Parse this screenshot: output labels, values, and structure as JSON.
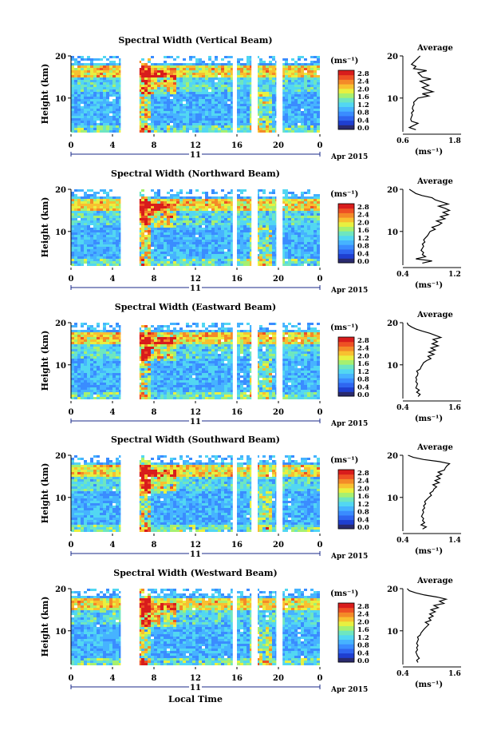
{
  "colors": {
    "colormap": [
      "#2a2a6e",
      "#1f3fd0",
      "#2f66f0",
      "#3a8cff",
      "#46b3ff",
      "#52d7f2",
      "#6ee6c0",
      "#a6f070",
      "#e8f040",
      "#f8c030",
      "#f48a28",
      "#ee5024",
      "#d81c1c"
    ],
    "background": "#ffffff",
    "axis": "#000000",
    "profile_line": "#000000"
  },
  "chart_data": [
    {
      "type": "heatmap",
      "title": "Spectral Width (Vertical Beam)",
      "ylabel": "Height (km)",
      "yticks": [
        "20",
        "10"
      ],
      "xticks": [
        "0",
        "4",
        "8",
        "12",
        "16",
        "20",
        "0"
      ],
      "date_label": "11",
      "date_suffix": "Apr 2015",
      "colorbar_unit": "(ms⁻¹)",
      "colorbar_ticks": [
        "2.8",
        "2.4",
        "2.0",
        "1.6",
        "1.2",
        "0.8",
        "0.4",
        "0.0"
      ],
      "xlim_hours": [
        0,
        24
      ],
      "ylim_km": [
        2,
        20
      ],
      "gaps_hours": [
        [
          4.8,
          6.6
        ],
        [
          15.6,
          16.0
        ],
        [
          17.4,
          18.0
        ],
        [
          19.8,
          20.4
        ]
      ],
      "profile": {
        "title": "Average",
        "xlabel": "(ms⁻¹)",
        "xticks": [
          "0.6",
          "1.8"
        ],
        "xlim": [
          0.6,
          1.8
        ],
        "yticks": [
          "20",
          "10"
        ],
        "height_km": [
          2.5,
          3,
          3.5,
          4,
          4.5,
          5,
          5.5,
          6,
          6.5,
          7,
          7.5,
          8,
          8.5,
          9,
          9.5,
          10,
          10.5,
          11,
          11.5,
          12,
          12.5,
          13,
          13.5,
          14,
          14.5,
          15,
          15.5,
          16,
          16.5,
          17,
          17.5,
          18,
          18.5,
          19,
          19.5,
          20
        ],
        "width": [
          0.9,
          0.75,
          0.85,
          0.95,
          0.8,
          0.78,
          0.8,
          0.82,
          0.8,
          0.85,
          0.82,
          0.83,
          0.86,
          0.85,
          0.9,
          0.95,
          1.2,
          1.05,
          1.3,
          1.15,
          1.05,
          1.2,
          1.1,
          1.0,
          1.25,
          1.05,
          1.0,
          0.95,
          1.15,
          0.85,
          0.9,
          0.8,
          0.85,
          0.9,
          0.95,
          1.0
        ]
      }
    },
    {
      "type": "heatmap",
      "title": "Spectral Width (Northward Beam)",
      "ylabel": "Height (km)",
      "yticks": [
        "20",
        "10"
      ],
      "xticks": [
        "0",
        "4",
        "8",
        "12",
        "16",
        "20",
        "0"
      ],
      "date_label": "11",
      "date_suffix": "Apr 2015",
      "colorbar_unit": "(ms⁻¹)",
      "colorbar_ticks": [
        "2.8",
        "2.4",
        "2.0",
        "1.6",
        "1.2",
        "0.8",
        "0.4",
        "0.0"
      ],
      "xlim_hours": [
        0,
        24
      ],
      "ylim_km": [
        2,
        20
      ],
      "gaps_hours": [
        [
          4.8,
          6.6
        ],
        [
          15.6,
          16.0
        ],
        [
          17.4,
          18.0
        ],
        [
          19.8,
          20.4
        ]
      ],
      "profile": {
        "title": "Average",
        "xlabel": "(ms⁻¹)",
        "xticks": [
          "0.4",
          "1.2"
        ],
        "xlim": [
          0.4,
          1.2
        ],
        "yticks": [
          "20",
          "10"
        ],
        "height_km": [
          2.5,
          3,
          3.5,
          4,
          4.5,
          5,
          5.5,
          6,
          6.5,
          7,
          7.5,
          8,
          8.5,
          9,
          9.5,
          10,
          10.5,
          11,
          11.5,
          12,
          12.5,
          13,
          13.5,
          14,
          14.5,
          15,
          15.5,
          16,
          16.5,
          17,
          17.5,
          18,
          18.5,
          19,
          19.5,
          20
        ],
        "width": [
          0.7,
          0.85,
          0.6,
          0.75,
          0.7,
          0.72,
          0.68,
          0.7,
          0.72,
          0.7,
          0.74,
          0.72,
          0.75,
          0.78,
          0.8,
          0.82,
          0.9,
          0.85,
          0.95,
          1.0,
          0.92,
          1.05,
          0.98,
          1.1,
          1.02,
          1.12,
          1.05,
          0.95,
          1.1,
          1.0,
          0.9,
          0.85,
          0.7,
          0.6,
          0.55,
          0.5
        ]
      }
    },
    {
      "type": "heatmap",
      "title": "Spectral Width (Eastward Beam)",
      "ylabel": "Height (km)",
      "yticks": [
        "20",
        "10"
      ],
      "xticks": [
        "0",
        "4",
        "8",
        "12",
        "16",
        "20",
        "0"
      ],
      "date_label": "11",
      "date_suffix": "Apr 2015",
      "colorbar_unit": "(ms⁻¹)",
      "colorbar_ticks": [
        "2.8",
        "2.4",
        "2.0",
        "1.6",
        "1.2",
        "0.8",
        "0.4",
        "0.0"
      ],
      "xlim_hours": [
        0,
        24
      ],
      "ylim_km": [
        2,
        20
      ],
      "gaps_hours": [
        [
          4.8,
          6.6
        ],
        [
          15.6,
          16.0
        ],
        [
          17.4,
          18.0
        ],
        [
          19.8,
          20.4
        ]
      ],
      "profile": {
        "title": "Average",
        "xlabel": "(ms⁻¹)",
        "xticks": [
          "0.4",
          "1.6"
        ],
        "xlim": [
          0.4,
          1.6
        ],
        "yticks": [
          "20",
          "10"
        ],
        "height_km": [
          2.5,
          3,
          3.5,
          4,
          4.5,
          5,
          5.5,
          6,
          6.5,
          7,
          7.5,
          8,
          8.5,
          9,
          9.5,
          10,
          10.5,
          11,
          11.5,
          12,
          12.5,
          13,
          13.5,
          14,
          14.5,
          15,
          15.5,
          16,
          16.5,
          17,
          17.5,
          18,
          18.5,
          19,
          19.5,
          20
        ],
        "width": [
          0.75,
          0.8,
          0.72,
          0.78,
          0.7,
          0.72,
          0.74,
          0.7,
          0.72,
          0.7,
          0.74,
          0.75,
          0.72,
          0.8,
          0.82,
          0.85,
          0.88,
          0.95,
          1.05,
          0.98,
          1.12,
          1.0,
          1.15,
          1.05,
          1.22,
          1.08,
          1.2,
          1.1,
          1.28,
          1.15,
          1.02,
          0.85,
          0.7,
          0.6,
          0.52,
          0.5
        ]
      }
    },
    {
      "type": "heatmap",
      "title": "Spectral Width (Southward Beam)",
      "ylabel": "Height (km)",
      "yticks": [
        "20",
        "10"
      ],
      "xticks": [
        "0",
        "4",
        "8",
        "12",
        "16",
        "20",
        "0"
      ],
      "date_label": "11",
      "date_suffix": "Apr 2015",
      "colorbar_unit": "(ms⁻¹)",
      "colorbar_ticks": [
        "2.8",
        "2.4",
        "2.0",
        "1.6",
        "1.2",
        "0.8",
        "0.4",
        "0.0"
      ],
      "xlim_hours": [
        0,
        24
      ],
      "ylim_km": [
        2,
        20
      ],
      "gaps_hours": [
        [
          4.8,
          6.6
        ],
        [
          15.6,
          16.0
        ],
        [
          17.4,
          18.0
        ],
        [
          19.8,
          20.4
        ]
      ],
      "profile": {
        "title": "Average",
        "xlabel": "(ms⁻¹)",
        "xticks": [
          "0.4",
          "1.4"
        ],
        "xlim": [
          0.4,
          1.4
        ],
        "yticks": [
          "20",
          "10"
        ],
        "height_km": [
          2.5,
          3,
          3.5,
          4,
          4.5,
          5,
          5.5,
          6,
          6.5,
          7,
          7.5,
          8,
          8.5,
          9,
          9.5,
          10,
          10.5,
          11,
          11.5,
          12,
          12.5,
          13,
          13.5,
          14,
          14.5,
          15,
          15.5,
          16,
          16.5,
          17,
          17.5,
          18,
          18.5,
          19,
          19.5,
          20
        ],
        "width": [
          0.78,
          0.85,
          0.75,
          0.82,
          0.78,
          0.8,
          0.76,
          0.78,
          0.8,
          0.78,
          0.82,
          0.8,
          0.84,
          0.82,
          0.86,
          0.9,
          0.95,
          0.92,
          0.98,
          1.0,
          1.05,
          0.98,
          1.1,
          1.02,
          1.12,
          1.05,
          1.15,
          1.08,
          1.2,
          1.22,
          1.25,
          1.3,
          1.1,
          0.8,
          0.6,
          0.5
        ]
      }
    },
    {
      "type": "heatmap",
      "title": "Spectral Width (Westward Beam)",
      "ylabel": "Height (km)",
      "yticks": [
        "20",
        "10"
      ],
      "xticks": [
        "0",
        "4",
        "8",
        "12",
        "16",
        "20",
        "0"
      ],
      "date_label": "11",
      "date_suffix": "Apr 2015",
      "colorbar_unit": "(ms⁻¹)",
      "colorbar_ticks": [
        "2.8",
        "2.4",
        "2.0",
        "1.6",
        "1.2",
        "0.8",
        "0.4",
        "0.0"
      ],
      "xlim_hours": [
        0,
        24
      ],
      "ylim_km": [
        2,
        20
      ],
      "gaps_hours": [
        [
          4.8,
          6.6
        ],
        [
          15.6,
          16.0
        ],
        [
          17.4,
          18.0
        ],
        [
          19.8,
          20.4
        ]
      ],
      "profile": {
        "title": "Average",
        "xlabel": "(ms⁻¹)",
        "xticks": [
          "0.4",
          "1.6"
        ],
        "xlim": [
          0.4,
          1.6
        ],
        "yticks": [
          "20",
          "10"
        ],
        "height_km": [
          2.5,
          3,
          3.5,
          4,
          4.5,
          5,
          5.5,
          6,
          6.5,
          7,
          7.5,
          8,
          8.5,
          9,
          9.5,
          10,
          10.5,
          11,
          11.5,
          12,
          12.5,
          13,
          13.5,
          14,
          14.5,
          15,
          15.5,
          16,
          16.5,
          17,
          17.5,
          18,
          18.5,
          19,
          19.5,
          20
        ],
        "width": [
          0.75,
          0.72,
          0.78,
          0.74,
          0.72,
          0.7,
          0.74,
          0.72,
          0.75,
          0.72,
          0.74,
          0.76,
          0.74,
          0.8,
          0.82,
          0.86,
          0.9,
          0.95,
          1.0,
          0.92,
          1.05,
          1.0,
          1.1,
          1.02,
          1.15,
          1.05,
          1.22,
          1.12,
          1.35,
          1.25,
          1.4,
          1.2,
          0.9,
          0.7,
          0.55,
          0.5
        ]
      }
    }
  ],
  "footer": {
    "xlabel": "Local Time"
  }
}
